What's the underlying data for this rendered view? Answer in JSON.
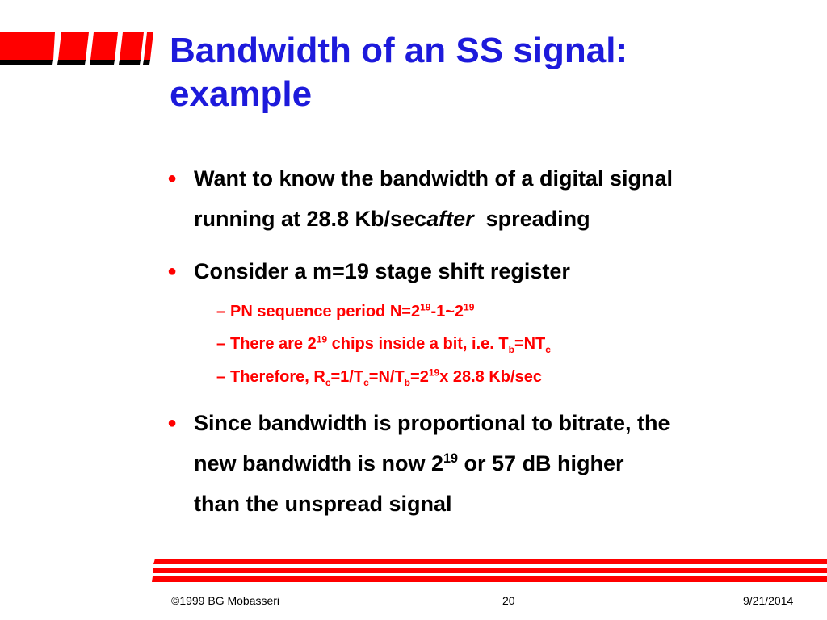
{
  "title": {
    "line1": "Bandwidth of an SS signal:",
    "line2": "example"
  },
  "bullets": [
    {
      "line1": "Want to know the bandwidth of a digital signal",
      "line2_a": "running at 28.8 Kb/sec",
      "line2_b": "after",
      "line2_c": "spreading"
    },
    {
      "line1": "Consider a m=19 stage shift register"
    },
    {
      "line1": "Since bandwidth is proportional to bitrate, the",
      "line2_a": "new bandwidth is now 2",
      "line2_sup": "19",
      "line2_b": " or 57 dB higher",
      "line3": "than the unspread signal"
    }
  ],
  "subbullets": [
    {
      "a": "PN sequence period N=2",
      "sup1": "19",
      "b": "-1~2",
      "sup2": "19"
    },
    {
      "a": "There are 2",
      "sup1": "19",
      "b": " chips inside a bit, i.e. T",
      "sub1": "b",
      "c": "=NT",
      "sub2": "c"
    },
    {
      "a": "Therefore, R",
      "sub1": "c",
      "b": "=1/T",
      "sub2": "c",
      "c": "=N/T",
      "sub3": "b",
      "d": "=2",
      "sup1": "19",
      "e": "x 28.8 Kb/sec"
    }
  ],
  "footer": {
    "copyright": "©1999 BG Mobasseri",
    "page": "20",
    "date": "9/21/2014"
  },
  "colors": {
    "title": "#1d1adb",
    "accent": "#ff0000",
    "text": "#000000"
  }
}
